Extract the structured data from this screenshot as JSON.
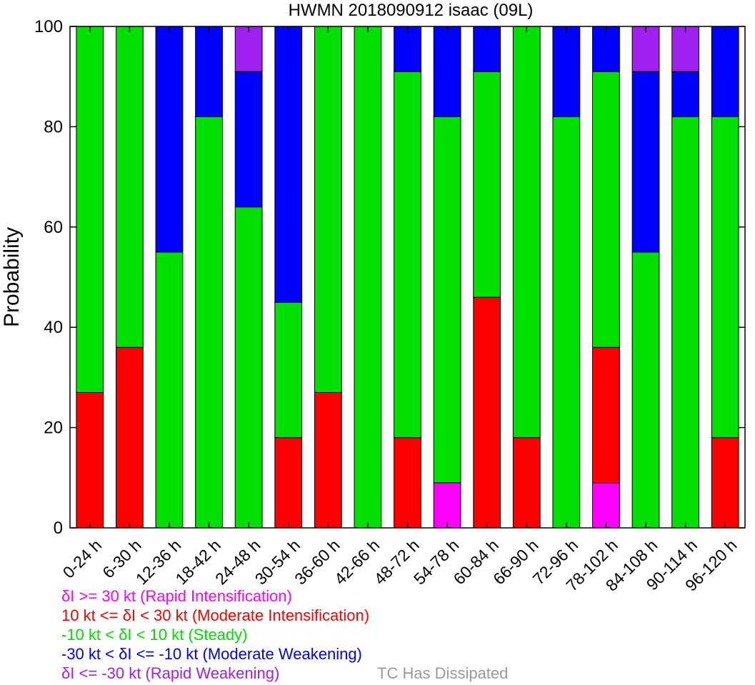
{
  "chart_data": {
    "type": "bar",
    "stacked": true,
    "title": "HWMN 2018090912 isaac (09L)",
    "xlabel": "",
    "ylabel": "Probability",
    "ylim": [
      0,
      100
    ],
    "yticks": [
      0,
      20,
      40,
      60,
      80,
      100
    ],
    "grid": false,
    "legend_placement": "bottom",
    "categories": [
      "0-24 h",
      "6-30 h",
      "12-36 h",
      "18-42 h",
      "24-48 h",
      "30-54 h",
      "36-60 h",
      "42-66 h",
      "48-72 h",
      "54-78 h",
      "60-84 h",
      "66-90 h",
      "72-96 h",
      "78-102 h",
      "84-108 h",
      "90-114 h",
      "96-120 h"
    ],
    "series": [
      {
        "name": "δI >= 30 kt (Rapid Intensification)",
        "color": "#ff00ff",
        "values": [
          0,
          0,
          0,
          0,
          0,
          0,
          0,
          0,
          0,
          9,
          0,
          0,
          0,
          9,
          0,
          0,
          0
        ]
      },
      {
        "name": "10 kt <= δI < 30 kt (Moderate Intensification)",
        "color": "#ff0000",
        "values": [
          27,
          36,
          0,
          0,
          0,
          18,
          27,
          0,
          18,
          0,
          46,
          18,
          0,
          27,
          0,
          0,
          18
        ]
      },
      {
        "name": "-10 kt < δI < 10 kt (Steady)",
        "color": "#00e000",
        "values": [
          73,
          64,
          55,
          82,
          64,
          27,
          73,
          100,
          73,
          73,
          45,
          82,
          82,
          55,
          55,
          82,
          64
        ]
      },
      {
        "name": "-30 kt < δI <= -10 kt (Moderate Weakening)",
        "color": "#0000ff",
        "values": [
          0,
          0,
          45,
          18,
          27,
          55,
          0,
          0,
          9,
          18,
          9,
          0,
          18,
          9,
          36,
          9,
          18
        ]
      },
      {
        "name": "δI <= -30 kt (Rapid Weakening)",
        "color": "#a020f0",
        "values": [
          0,
          0,
          0,
          0,
          9,
          0,
          0,
          0,
          0,
          0,
          0,
          0,
          0,
          0,
          9,
          9,
          0
        ]
      }
    ],
    "legend_extra": {
      "label": "TC Has Dissipated",
      "color": "#999999"
    }
  }
}
